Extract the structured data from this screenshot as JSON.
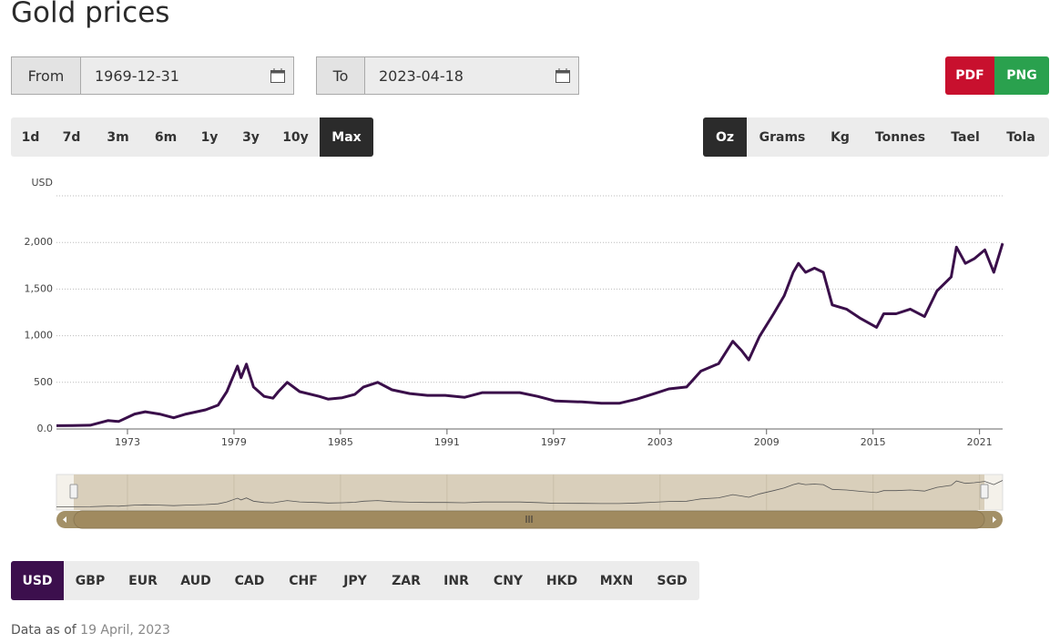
{
  "header": {
    "title": "Gold prices"
  },
  "date_range": {
    "from_label": "From",
    "from_value": "1969-12-31",
    "to_label": "To",
    "to_value": "2023-04-18"
  },
  "export": [
    "PDF",
    "PNG"
  ],
  "ranges": [
    "1d",
    "7d",
    "3m",
    "6m",
    "1y",
    "3y",
    "10y",
    "Max"
  ],
  "units": [
    "Oz",
    "Grams",
    "Kg",
    "Tonnes",
    "Tael",
    "Tola"
  ],
  "currencies": [
    "USD",
    "GBP",
    "EUR",
    "AUD",
    "CAD",
    "CHF",
    "JPY",
    "ZAR",
    "INR",
    "CNY",
    "HKD",
    "MXN",
    "SGD"
  ],
  "footer": {
    "prefix": "Data as of",
    "date": "19 April, 2023"
  },
  "chart_data": {
    "type": "line",
    "y_label": "USD",
    "color": "#3a0f4a",
    "x": [
      1969.0,
      1969.9,
      1970.9,
      1971.9,
      1972.5,
      1973.4,
      1974.0,
      1974.8,
      1975.6,
      1976.3,
      1977.4,
      1978.1,
      1978.6,
      1979.2,
      1979.4,
      1979.7,
      1980.1,
      1980.7,
      1981.2,
      1981.5,
      1982.0,
      1982.7,
      1983.8,
      1984.3,
      1985.1,
      1985.8,
      1986.3,
      1987.1,
      1987.9,
      1988.9,
      1989.9,
      1990.9,
      1992.0,
      1993.0,
      1995.1,
      1996.1,
      1997.1,
      1998.6,
      1999.7,
      2000.7,
      2001.7,
      2002.7,
      2003.5,
      2004.5,
      2005.3,
      2006.3,
      2007.1,
      2007.6,
      2008.0,
      2008.6,
      2009.4,
      2010.0,
      2010.5,
      2010.8,
      2011.2,
      2011.7,
      2012.2,
      2012.7,
      2013.5,
      2014.3,
      2015.2,
      2015.6,
      2016.3,
      2017.1,
      2017.9,
      2018.6,
      2019.4,
      2019.7,
      2020.2,
      2020.7,
      2021.3,
      2021.8,
      2022.3
    ],
    "values": [
      35,
      37,
      40,
      90,
      80,
      160,
      185,
      160,
      120,
      160,
      205,
      255,
      400,
      675,
      550,
      695,
      450,
      350,
      330,
      400,
      500,
      400,
      350,
      320,
      335,
      370,
      450,
      500,
      420,
      380,
      360,
      360,
      340,
      390,
      390,
      350,
      300,
      290,
      275,
      275,
      320,
      380,
      430,
      450,
      620,
      700,
      940,
      840,
      740,
      990,
      1235,
      1430,
      1680,
      1775,
      1680,
      1725,
      1680,
      1330,
      1285,
      1185,
      1090,
      1235,
      1235,
      1285,
      1205,
      1480,
      1630,
      1950,
      1775,
      1825,
      1920,
      1680,
      1990
    ],
    "xlim": [
      1969.0,
      2022.3
    ],
    "xticks": [
      1973,
      1979,
      1985,
      1991,
      1997,
      2003,
      2009,
      2015,
      2021
    ],
    "ylim": [
      0,
      2500
    ],
    "yticks": [
      {
        "value": 0,
        "label": "0.0"
      },
      500,
      {
        "value": 1000,
        "label": "1,000"
      },
      {
        "value": 1500,
        "label": "1,500"
      },
      {
        "value": 2000,
        "label": "2,000"
      }
    ],
    "grid": true
  }
}
